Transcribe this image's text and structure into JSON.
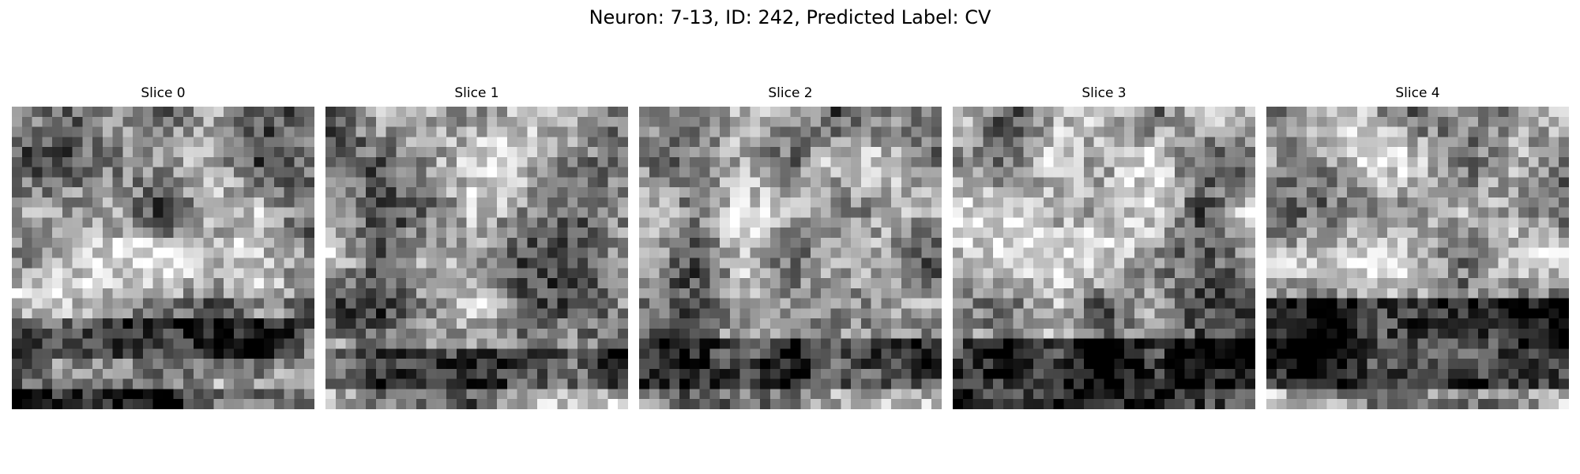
{
  "figure": {
    "title": "Neuron: 7-13, ID: 242, Predicted Label: CV"
  },
  "slices": [
    {
      "label": "Slice 0"
    },
    {
      "label": "Slice 1"
    },
    {
      "label": "Slice 2"
    },
    {
      "label": "Slice 3"
    },
    {
      "label": "Slice 4"
    }
  ],
  "colormap": "gray"
}
